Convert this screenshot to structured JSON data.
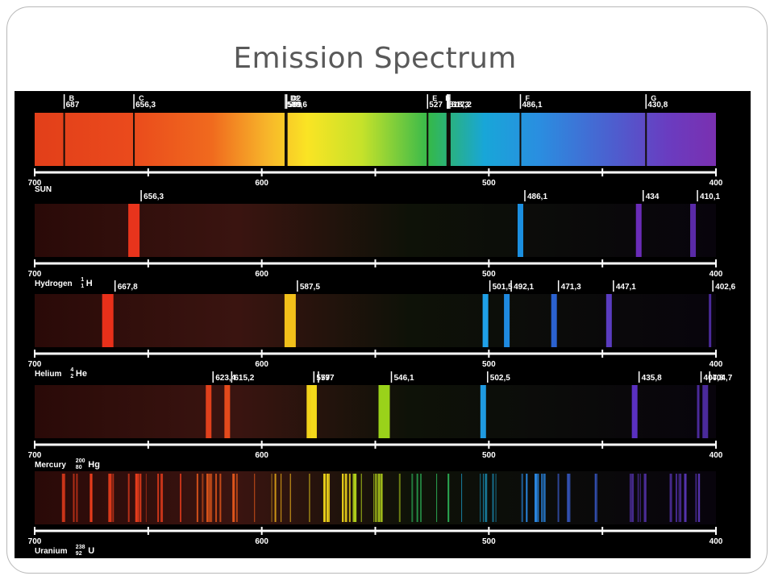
{
  "slide": {
    "title": "Emission Spectrum"
  },
  "axis": {
    "min": 400,
    "max": 700,
    "tick_labels": [
      "700",
      "600",
      "500",
      "400"
    ]
  },
  "colors": {
    "background": "#000000",
    "axis": "#ffffff",
    "label": "#ffffff"
  },
  "panels": [
    {
      "id": "sun",
      "name": "SUN",
      "type": "absorption",
      "lines": [
        {
          "letter": "B",
          "label": "687",
          "wavelength": 687
        },
        {
          "letter": "C",
          "label": "656,3",
          "wavelength": 656.3
        },
        {
          "letter": "D1",
          "label": "589,6",
          "wavelength": 589.6
        },
        {
          "letter": "D2",
          "label": "589",
          "wavelength": 589.0
        },
        {
          "letter": "E",
          "label": "527",
          "wavelength": 527.0
        },
        {
          "letter": "",
          "label": "518,3",
          "wavelength": 518.3
        },
        {
          "letter": "b",
          "label": "",
          "wavelength": 517.8
        },
        {
          "letter": "",
          "label": "517,2",
          "wavelength": 517.2
        },
        {
          "letter": "F",
          "label": "486,1",
          "wavelength": 486.1
        },
        {
          "letter": "G",
          "label": "430,8",
          "wavelength": 430.8
        }
      ]
    },
    {
      "id": "hydrogen",
      "name": "Hydrogen",
      "isotope": {
        "mass": "1",
        "atomic": "1",
        "symbol": "H"
      },
      "type": "emission",
      "lines": [
        {
          "label": "656,3",
          "wavelength": 656.3,
          "color": "#e8341c"
        },
        {
          "label": "486,1",
          "wavelength": 486.1,
          "color": "#1b8fe0"
        },
        {
          "label": "434",
          "wavelength": 434.0,
          "color": "#6a2cb8"
        },
        {
          "label": "410,1",
          "wavelength": 410.1,
          "color": "#5a2aa8"
        }
      ]
    },
    {
      "id": "helium",
      "name": "Helium",
      "isotope": {
        "mass": "4",
        "atomic": "2",
        "symbol": "He"
      },
      "type": "emission",
      "lines": [
        {
          "label": "667,8",
          "wavelength": 667.8,
          "color": "#e8301a"
        },
        {
          "label": "587,5",
          "wavelength": 587.5,
          "color": "#f2c01a"
        },
        {
          "label": "501,5",
          "wavelength": 501.5,
          "color": "#1fa0e8"
        },
        {
          "label": "492,1",
          "wavelength": 492.1,
          "color": "#1f8ae0"
        },
        {
          "label": "471,3",
          "wavelength": 471.3,
          "color": "#2b62d0"
        },
        {
          "label": "447,1",
          "wavelength": 447.1,
          "color": "#5a3cc0"
        },
        {
          "label": "402,6",
          "wavelength": 402.6,
          "color": "#4a2a9a"
        }
      ]
    },
    {
      "id": "mercury",
      "name": "Mercury",
      "isotope": {
        "mass": "200",
        "atomic": "80",
        "symbol": "Hg"
      },
      "type": "emission",
      "lines": [
        {
          "label": "623,4",
          "wavelength": 623.4,
          "color": "#e0401c"
        },
        {
          "label": "615,2",
          "wavelength": 615.2,
          "color": "#e44a1c"
        },
        {
          "label": "579",
          "wavelength": 579.0,
          "color": "#f2d21a"
        },
        {
          "label": "577",
          "wavelength": 577.0,
          "color": "#f4d81a"
        },
        {
          "label": "546,1",
          "wavelength": 546.1,
          "color": "#9ad21a"
        },
        {
          "label": "502,5",
          "wavelength": 502.5,
          "color": "#1f9ae0"
        },
        {
          "label": "435,8",
          "wavelength": 435.8,
          "color": "#5a30c0"
        },
        {
          "label": "407,8",
          "wavelength": 407.8,
          "color": "#4a2a9a"
        },
        {
          "label": "404,7",
          "wavelength": 404.7,
          "color": "#4a2a9a"
        }
      ]
    },
    {
      "id": "uranium",
      "name": "Uranium",
      "isotope": {
        "mass": "238",
        "atomic": "92",
        "symbol": "U"
      },
      "type": "emission",
      "lines": []
    }
  ]
}
